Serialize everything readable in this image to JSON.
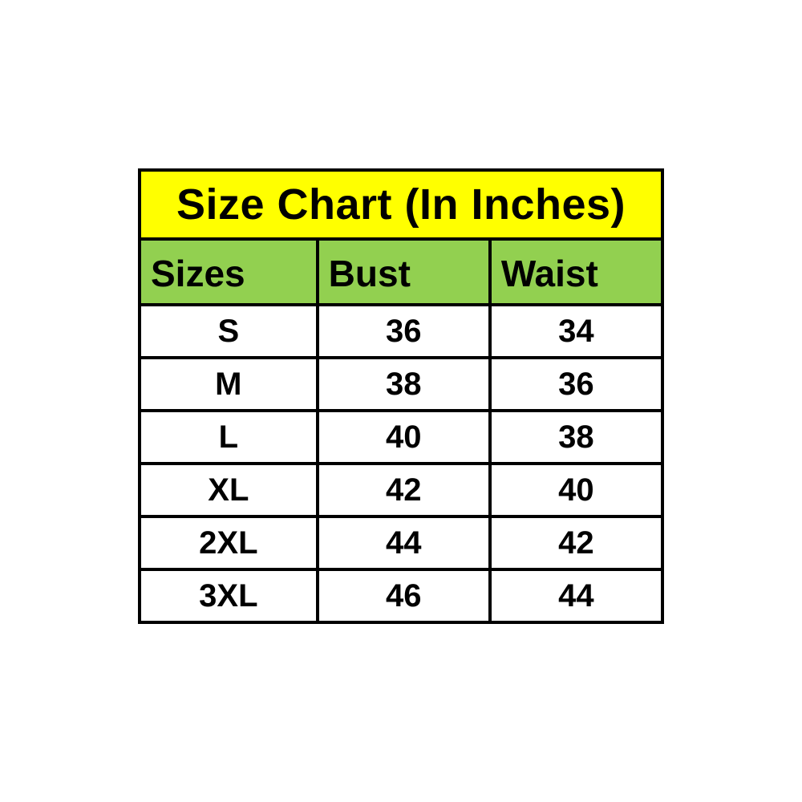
{
  "title": "Size Chart (In Inches)",
  "colors": {
    "title_bg": "#ffff00",
    "header_bg": "#92d050",
    "row_bg": "#ffffff",
    "border": "#000000",
    "text": "#000000"
  },
  "table": {
    "headers": [
      "Sizes",
      "Bust",
      "Waist"
    ],
    "rows": [
      {
        "size": "S",
        "bust": "36",
        "waist": "34"
      },
      {
        "size": "M",
        "bust": "38",
        "waist": "36"
      },
      {
        "size": "L",
        "bust": "40",
        "waist": "38"
      },
      {
        "size": "XL",
        "bust": "42",
        "waist": "40"
      },
      {
        "size": "2XL",
        "bust": "44",
        "waist": "42"
      },
      {
        "size": "3XL",
        "bust": "46",
        "waist": "44"
      }
    ]
  },
  "chart_data": {
    "type": "table",
    "title": "Size Chart (In Inches)",
    "columns": [
      "Sizes",
      "Bust",
      "Waist"
    ],
    "rows": [
      [
        "S",
        36,
        34
      ],
      [
        "M",
        38,
        36
      ],
      [
        "L",
        40,
        38
      ],
      [
        "XL",
        42,
        40
      ],
      [
        "2XL",
        44,
        42
      ],
      [
        "3XL",
        46,
        44
      ]
    ],
    "units": "inches",
    "layout": {
      "title_band_color": "#ffff00",
      "header_band_color": "#92d050",
      "grid": "black solid borders"
    }
  }
}
